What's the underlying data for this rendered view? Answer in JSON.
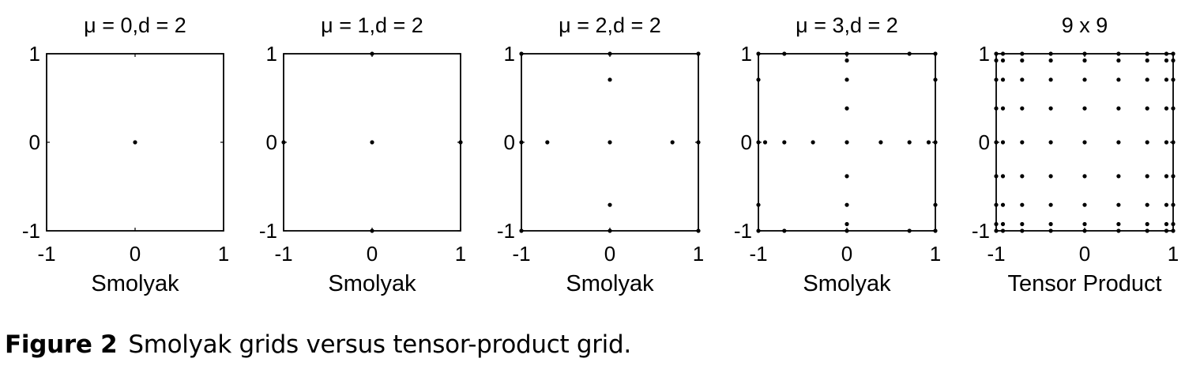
{
  "figure": {
    "caption_label": "Figure 2",
    "caption_text": "Smolyak grids versus tensor-product grid."
  },
  "chart_data": [
    {
      "type": "scatter",
      "title": "μ = 0,d = 2",
      "xlabel": "Smolyak",
      "ylabel": "",
      "xlim": [
        -1,
        1
      ],
      "ylim": [
        -1,
        1
      ],
      "xticks": [
        "-1",
        "0",
        "1"
      ],
      "yticks": [
        "-1",
        "0",
        "1"
      ],
      "points": [
        [
          0,
          0
        ]
      ]
    },
    {
      "type": "scatter",
      "title": "μ = 1,d = 2",
      "xlabel": "Smolyak",
      "ylabel": "",
      "xlim": [
        -1,
        1
      ],
      "ylim": [
        -1,
        1
      ],
      "xticks": [
        "-1",
        "0",
        "1"
      ],
      "yticks": [
        "-1",
        "0",
        "1"
      ],
      "points": [
        [
          0,
          0
        ],
        [
          -1,
          0
        ],
        [
          1,
          0
        ],
        [
          0,
          -1
        ],
        [
          0,
          1
        ]
      ]
    },
    {
      "type": "scatter",
      "title": "μ = 2,d = 2",
      "xlabel": "Smolyak",
      "ylabel": "",
      "xlim": [
        -1,
        1
      ],
      "ylim": [
        -1,
        1
      ],
      "xticks": [
        "-1",
        "0",
        "1"
      ],
      "yticks": [
        "-1",
        "0",
        "1"
      ],
      "points": [
        [
          0,
          0
        ],
        [
          -1,
          0
        ],
        [
          1,
          0
        ],
        [
          0,
          -1
        ],
        [
          0,
          1
        ],
        [
          -0.707,
          0
        ],
        [
          0.707,
          0
        ],
        [
          0,
          -0.707
        ],
        [
          0,
          0.707
        ],
        [
          -1,
          -1
        ],
        [
          -1,
          1
        ],
        [
          1,
          -1
        ],
        [
          1,
          1
        ]
      ]
    },
    {
      "type": "scatter",
      "title": "μ = 3,d = 2",
      "xlabel": "Smolyak",
      "ylabel": "",
      "xlim": [
        -1,
        1
      ],
      "ylim": [
        -1,
        1
      ],
      "xticks": [
        "-1",
        "0",
        "1"
      ],
      "yticks": [
        "-1",
        "0",
        "1"
      ],
      "points": [
        [
          -1,
          0
        ],
        [
          -0.924,
          0
        ],
        [
          -0.707,
          0
        ],
        [
          -0.383,
          0
        ],
        [
          0,
          0
        ],
        [
          0.383,
          0
        ],
        [
          0.707,
          0
        ],
        [
          0.924,
          0
        ],
        [
          1,
          0
        ],
        [
          0,
          -1
        ],
        [
          0,
          -0.924
        ],
        [
          0,
          -0.707
        ],
        [
          0,
          -0.383
        ],
        [
          0,
          0.383
        ],
        [
          0,
          0.707
        ],
        [
          0,
          0.924
        ],
        [
          0,
          1
        ],
        [
          -1,
          -1
        ],
        [
          -1,
          1
        ],
        [
          1,
          -1
        ],
        [
          1,
          1
        ],
        [
          -0.707,
          -1
        ],
        [
          -0.707,
          1
        ],
        [
          0.707,
          -1
        ],
        [
          0.707,
          1
        ],
        [
          -1,
          -0.707
        ],
        [
          -1,
          0.707
        ],
        [
          1,
          -0.707
        ],
        [
          1,
          0.707
        ]
      ]
    },
    {
      "type": "scatter",
      "title": "9 x 9",
      "xlabel": "Tensor Product",
      "ylabel": "",
      "xlim": [
        -1,
        1
      ],
      "ylim": [
        -1,
        1
      ],
      "xticks": [
        "-1",
        "0",
        "1"
      ],
      "yticks": [
        "-1",
        "0",
        "1"
      ],
      "grid_values": [
        -1,
        -0.924,
        -0.707,
        -0.383,
        0,
        0.383,
        0.707,
        0.924,
        1
      ]
    }
  ]
}
